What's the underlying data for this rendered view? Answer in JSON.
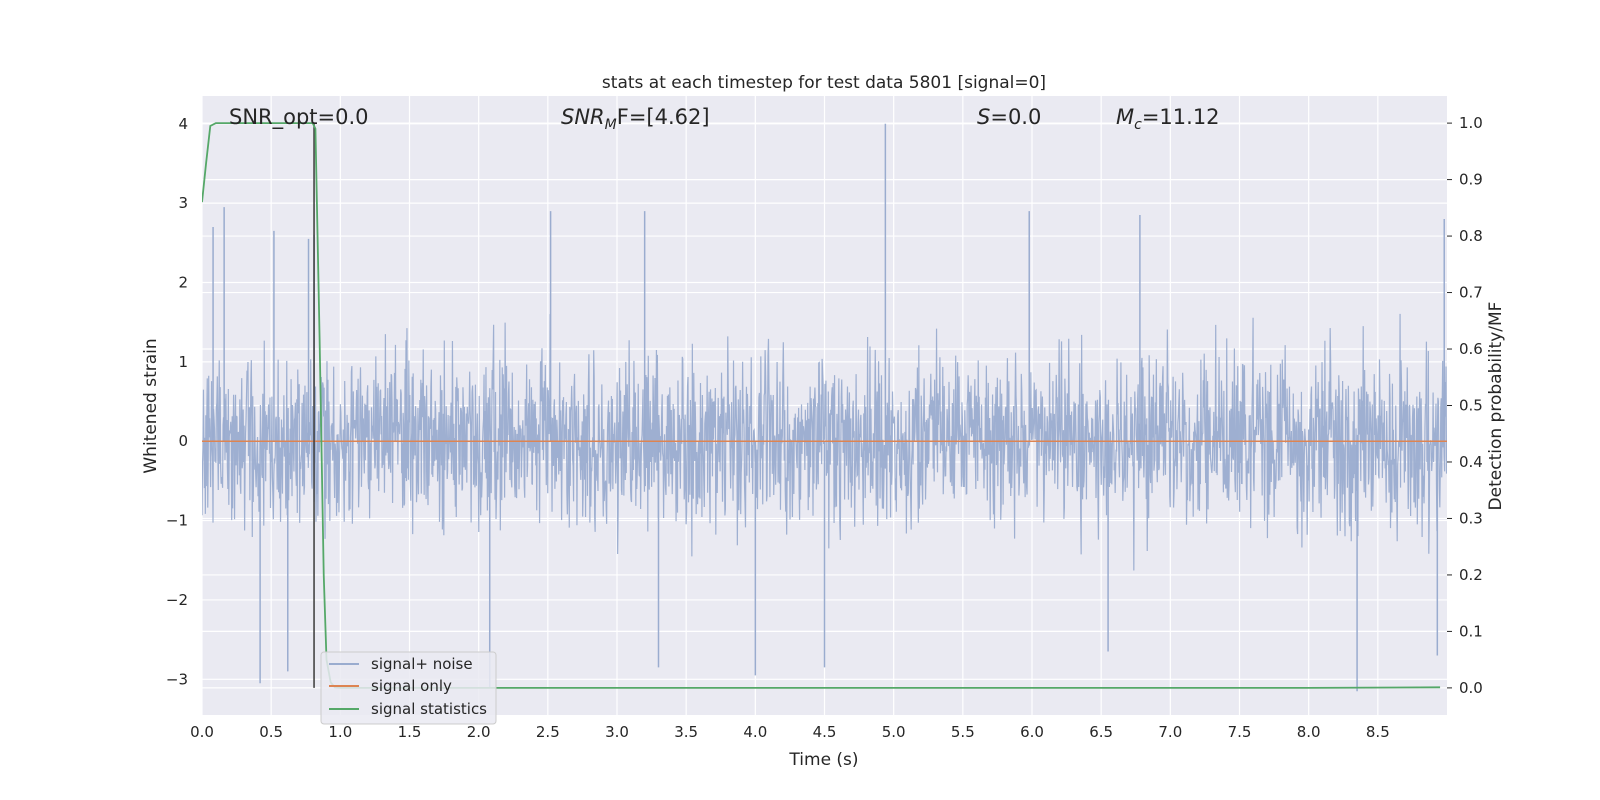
{
  "chart_data": {
    "type": "line",
    "title": "stats at each timestep for test data 5801 [signal=0]",
    "xlabel": "Time (s)",
    "ylabel_left": "Whitened strain",
    "ylabel_right": "Detection probability/MF",
    "xlim": [
      0,
      9
    ],
    "ylim_left": [
      -3.45,
      4.35
    ],
    "ylim_right": [
      -0.048,
      1.048
    ],
    "xticks": [
      0.0,
      0.5,
      1.0,
      1.5,
      2.0,
      2.5,
      3.0,
      3.5,
      4.0,
      4.5,
      5.0,
      5.5,
      6.0,
      6.5,
      7.0,
      7.5,
      8.0,
      8.5
    ],
    "xtick_labels": [
      "0.0",
      "0.5",
      "1.0",
      "1.5",
      "2.0",
      "2.5",
      "3.0",
      "3.5",
      "4.0",
      "4.5",
      "5.0",
      "5.5",
      "6.0",
      "6.5",
      "7.0",
      "7.5",
      "8.0",
      "8.5"
    ],
    "yticks_left": [
      -3,
      -2,
      -1,
      0,
      1,
      2,
      3,
      4
    ],
    "ytick_labels_left": [
      "−3",
      "−2",
      "−1",
      "0",
      "1",
      "2",
      "3",
      "4"
    ],
    "yticks_right": [
      0.0,
      0.1,
      0.2,
      0.3,
      0.4,
      0.5,
      0.6,
      0.7,
      0.8,
      0.9,
      1.0
    ],
    "ytick_labels_right": [
      "0.0",
      "0.1",
      "0.2",
      "0.3",
      "0.4",
      "0.5",
      "0.6",
      "0.7",
      "0.8",
      "0.9",
      "1.0"
    ],
    "grid": true,
    "legend_position": "lower-left",
    "annotations": {
      "snr_opt": "SNR_opt=0.0",
      "snr_mf_name": "SNR",
      "snr_mf_sub": "M",
      "snr_mf_rest": "F=[4.62]",
      "s_name": "S",
      "s_rest": "=0.0",
      "mc_name": "M",
      "mc_sub": "c",
      "mc_rest": "=11.12"
    },
    "marker_line_x": 0.81,
    "series": [
      {
        "name": "signal+ noise",
        "axis": "left",
        "color": "#9aaccf",
        "description": "dense whitened-noise band, roughly ±1.8 with excursions",
        "band": [
          -1.8,
          1.8
        ],
        "peaks_max": [
          [
            0.08,
            2.7
          ],
          [
            0.16,
            2.95
          ],
          [
            0.52,
            2.65
          ],
          [
            0.77,
            2.55
          ],
          [
            0.81,
            2.6
          ],
          [
            2.52,
            2.9
          ],
          [
            3.2,
            2.9
          ],
          [
            4.94,
            4.0
          ],
          [
            5.98,
            2.9
          ],
          [
            6.78,
            2.85
          ],
          [
            8.98,
            2.8
          ]
        ],
        "peaks_min": [
          [
            0.42,
            -3.05
          ],
          [
            0.62,
            -2.9
          ],
          [
            2.08,
            -3.1
          ],
          [
            3.3,
            -2.85
          ],
          [
            4.0,
            -2.95
          ],
          [
            4.5,
            -2.85
          ],
          [
            6.55,
            -2.65
          ],
          [
            8.35,
            -3.15
          ],
          [
            8.93,
            -2.7
          ]
        ]
      },
      {
        "name": "signal only",
        "axis": "left",
        "color": "#dd8452",
        "x": [
          0,
          9
        ],
        "values": [
          0,
          0
        ]
      },
      {
        "name": "signal statistics",
        "axis": "right",
        "color": "#55a868",
        "x": [
          0.0,
          0.03,
          0.06,
          0.1,
          0.2,
          0.4,
          0.6,
          0.76,
          0.8,
          0.82,
          0.85,
          0.88,
          0.9,
          0.93,
          0.96,
          1.0,
          2.0,
          4.0,
          6.0,
          8.0,
          8.95
        ],
        "values": [
          0.86,
          0.93,
          0.995,
          1.0,
          1.0,
          1.0,
          1.0,
          1.0,
          1.0,
          0.99,
          0.62,
          0.2,
          0.05,
          0.01,
          0.001,
          0.0,
          0.0,
          0.0,
          0.0,
          0.0,
          0.001
        ]
      }
    ]
  }
}
